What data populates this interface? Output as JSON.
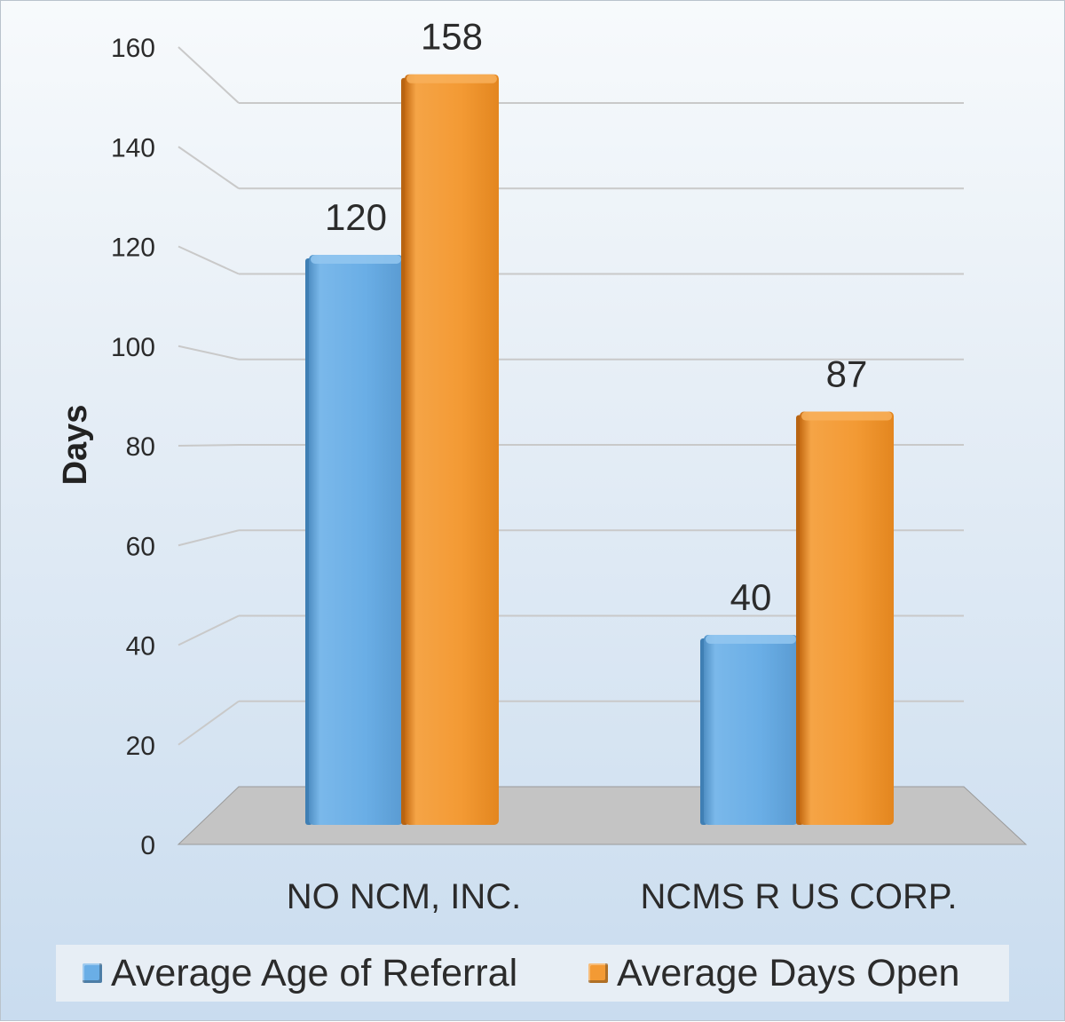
{
  "chart_data": {
    "type": "bar",
    "categories": [
      "NO NCM, INC.",
      "NCMS R US CORP."
    ],
    "series": [
      {
        "name": "Average Age of Referral",
        "values": [
          120,
          40
        ],
        "color": "#6aaee6"
      },
      {
        "name": "Average Days Open",
        "values": [
          158,
          87
        ],
        "color": "#f39a34"
      }
    ],
    "ylabel": "Days",
    "xlabel": "",
    "ylim": [
      0,
      160
    ],
    "yticks": [
      0,
      20,
      40,
      60,
      80,
      100,
      120,
      140,
      160
    ],
    "grid": true,
    "legend_position": "bottom",
    "style": "3d-clustered-column"
  }
}
